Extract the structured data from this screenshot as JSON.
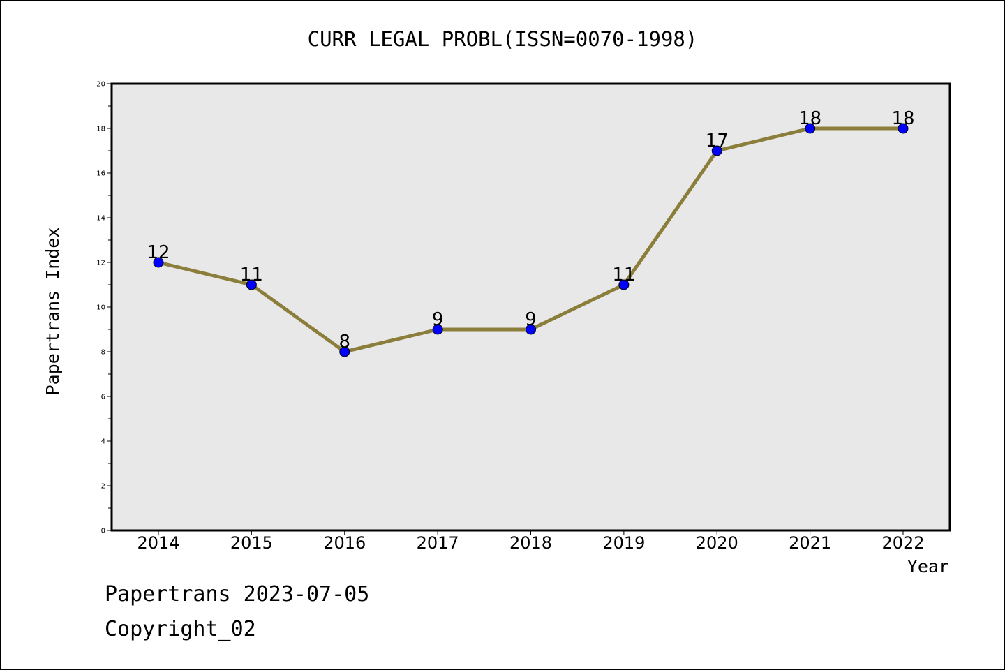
{
  "chart_data": {
    "type": "line",
    "title": "CURR LEGAL PROBL(ISSN=0070-1998)",
    "xlabel": "Year",
    "ylabel": "Papertrans Index",
    "categories": [
      "2014",
      "2015",
      "2016",
      "2017",
      "2018",
      "2019",
      "2020",
      "2021",
      "2022"
    ],
    "values": [
      12,
      11,
      8,
      9,
      9,
      11,
      17,
      18,
      18
    ],
    "ylim": [
      0,
      20
    ],
    "yticks": [
      0,
      2,
      4,
      6,
      8,
      10,
      12,
      14,
      16,
      18,
      20
    ],
    "grid": false,
    "legend": "none",
    "colors": {
      "line": "#8b7d3a",
      "marker": "#0000ff",
      "plot_background": "#e8e8e8"
    }
  },
  "footer": {
    "date_line": "Papertrans 2023-07-05",
    "copyright_line": "Copyright_02"
  }
}
